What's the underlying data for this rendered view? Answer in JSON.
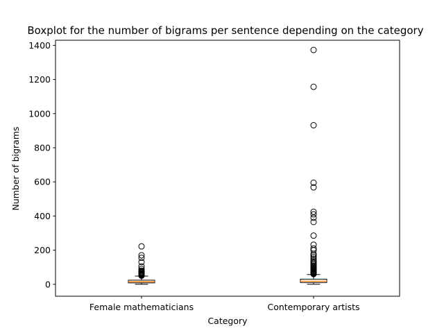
{
  "chart_data": {
    "type": "boxplot",
    "title": "Boxplot for the number of bigrams per sentence depending on the category",
    "xlabel": "Category",
    "ylabel": "Number of bigrams",
    "ylim": [
      -70,
      1430
    ],
    "yticks": [
      0,
      200,
      400,
      600,
      800,
      1000,
      1200,
      1400
    ],
    "grid": false,
    "categories": [
      "Female mathematicians",
      "Contemporary artists"
    ],
    "series": [
      {
        "min": 0,
        "q1": 8,
        "median": 15,
        "q3": 24,
        "max": 48,
        "outliers": [
          50,
          53,
          55,
          58,
          60,
          63,
          66,
          70,
          75,
          80,
          90,
          105,
          130,
          155,
          170,
          222
        ]
      },
      {
        "min": 0,
        "q1": 10,
        "median": 18,
        "q3": 30,
        "max": 57,
        "outliers": [
          60,
          63,
          66,
          70,
          74,
          78,
          82,
          86,
          90,
          95,
          100,
          105,
          110,
          118,
          125,
          132,
          140,
          150,
          160,
          170,
          178,
          200,
          210,
          232,
          285,
          365,
          390,
          410,
          425,
          568,
          595,
          932,
          1157,
          1373
        ]
      }
    ],
    "colors": {
      "box_edge": "#000000",
      "median": "#ff7f0e",
      "flier_edge": "#000000"
    }
  }
}
